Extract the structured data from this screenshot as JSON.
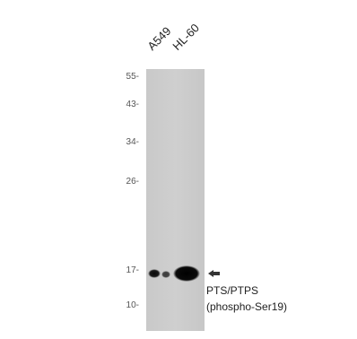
{
  "lanes": [
    "A549",
    "HL-60"
  ],
  "markers": [
    "55-",
    "43-",
    "34-",
    "26-",
    "17-",
    "10-"
  ],
  "target": {
    "line1": "PTS/PTPS",
    "line2": "(phospho-Ser19)"
  }
}
